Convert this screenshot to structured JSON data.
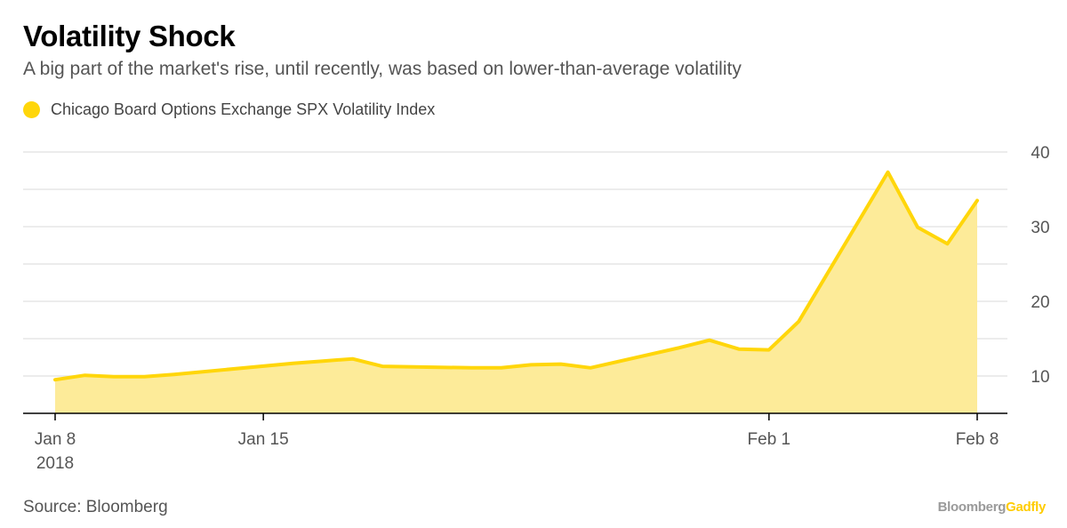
{
  "title": "Volatility Shock",
  "subtitle": "A big part of the market's rise, until recently, was based on lower-than-average volatility",
  "legend": {
    "label": "Chicago Board Options Exchange SPX Volatility Index",
    "color": "#ffd60a"
  },
  "source": "Source: Bloomberg",
  "brand": {
    "part1": "Bloomberg",
    "part2": "Gadfly"
  },
  "chart_data": {
    "type": "area",
    "title": "Volatility Shock",
    "subtitle": "A big part of the market's rise, until recently, was based on lower-than-average volatility",
    "xlabel": "",
    "ylabel": "",
    "x": [
      "2018-01-08",
      "2018-01-09",
      "2018-01-10",
      "2018-01-11",
      "2018-01-12",
      "2018-01-16",
      "2018-01-17",
      "2018-01-18",
      "2018-01-19",
      "2018-01-22",
      "2018-01-23",
      "2018-01-24",
      "2018-01-25",
      "2018-01-26",
      "2018-01-29",
      "2018-01-30",
      "2018-01-31",
      "2018-02-01",
      "2018-02-02",
      "2018-02-05",
      "2018-02-06",
      "2018-02-07",
      "2018-02-08"
    ],
    "series": [
      {
        "name": "Chicago Board Options Exchange SPX Volatility Index",
        "color": "#ffd60a",
        "values": [
          9.5,
          10.1,
          9.9,
          9.9,
          10.2,
          11.7,
          12.0,
          12.3,
          11.3,
          11.1,
          11.1,
          11.5,
          11.6,
          11.1,
          13.8,
          14.8,
          13.6,
          13.5,
          17.3,
          37.3,
          29.9,
          27.7,
          33.5
        ]
      }
    ],
    "x_ticks": [
      {
        "date": "2018-01-08",
        "label": "Jan 8",
        "sublabel": "2018"
      },
      {
        "date": "2018-01-15",
        "label": "Jan 15"
      },
      {
        "date": "2018-02-01",
        "label": "Feb 1"
      },
      {
        "date": "2018-02-08",
        "label": "Feb 8"
      }
    ],
    "y_ticks": [
      10,
      20,
      30,
      40
    ],
    "ylim": [
      5,
      40
    ],
    "xlim": [
      "2018-01-08",
      "2018-02-08"
    ],
    "y_axis_side": "right",
    "grid": true
  }
}
